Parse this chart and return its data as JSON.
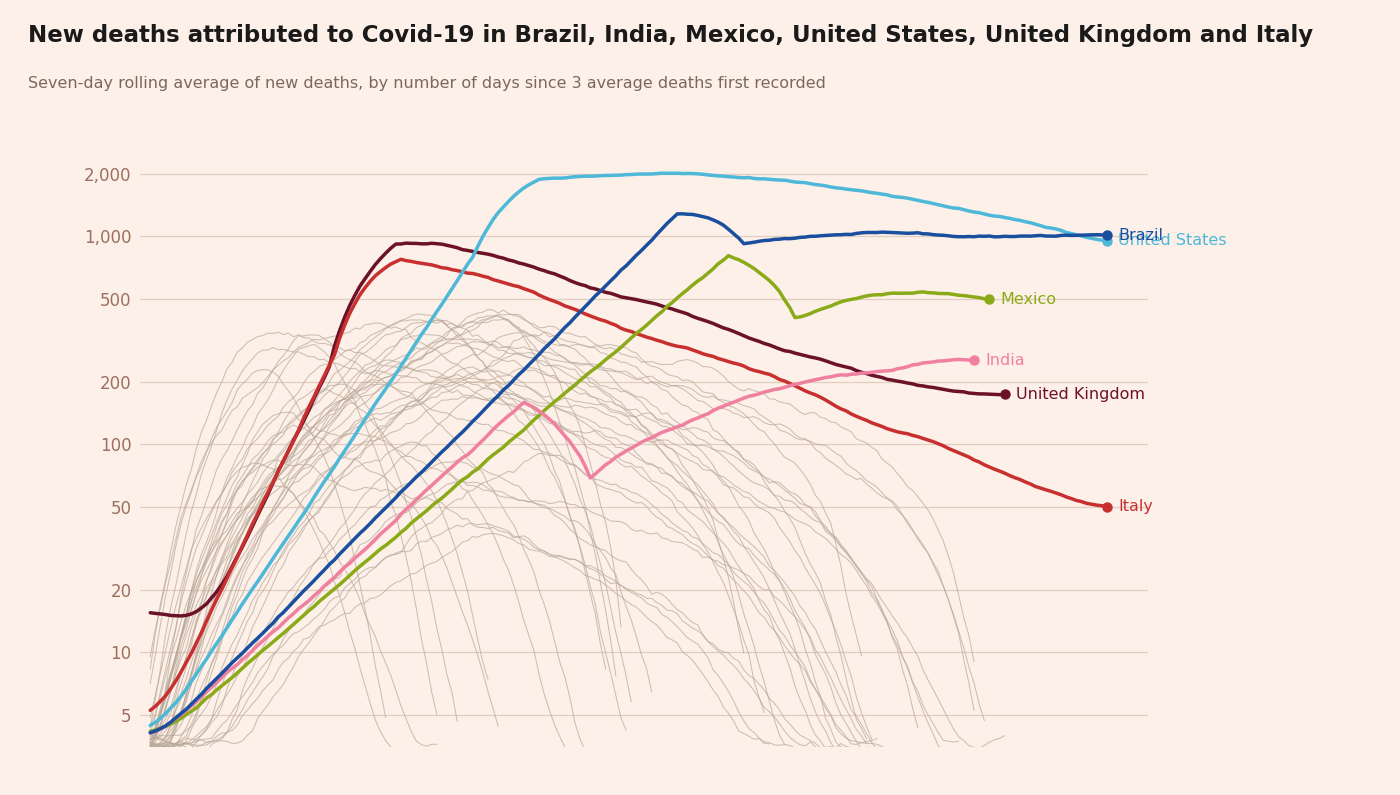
{
  "title": "New deaths attributed to Covid-19 in Brazil, India, Mexico, United States, United Kingdom and Italy",
  "subtitle": "Seven-day rolling average of new deaths, by number of days since 3 average deaths first recorded",
  "background_color": "#fdf0e8",
  "grid_color": "#e0cfc0",
  "yticks": [
    5,
    10,
    20,
    50,
    100,
    200,
    500,
    1000,
    2000
  ],
  "xlim": [
    -2,
    195
  ],
  "ylim": [
    3.5,
    2800
  ],
  "title_fontsize": 16.5,
  "subtitle_fontsize": 11.5,
  "tick_color": "#9b7060",
  "color_us": "#4db8d8",
  "color_brazil": "#1a4fa0",
  "color_mexico": "#8aaa18",
  "color_india": "#f080a0",
  "color_uk": "#6b1228",
  "color_italy": "#c83030",
  "color_gray": "#b8a898"
}
